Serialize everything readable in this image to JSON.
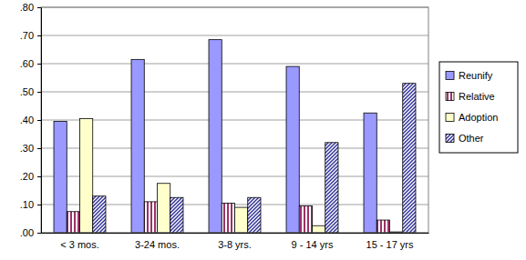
{
  "chart_data": {
    "type": "bar",
    "categories": [
      "< 3 mos.",
      "3-24 mos.",
      "3-8 yrs.",
      "9 - 14 yrs",
      "15 - 17 yrs"
    ],
    "series": [
      {
        "name": "Reunify",
        "color": "#9999ff",
        "values": [
          0.395,
          0.615,
          0.685,
          0.59,
          0.425
        ]
      },
      {
        "name": "Relative",
        "color": "#993366",
        "values": [
          0.075,
          0.11,
          0.105,
          0.095,
          0.045
        ]
      },
      {
        "name": "Adoption",
        "color": "#ffffcc",
        "values": [
          0.405,
          0.175,
          0.09,
          0.025,
          0.003
        ]
      },
      {
        "name": "Other",
        "color": "#333399",
        "values": [
          0.13,
          0.125,
          0.125,
          0.32,
          0.53
        ]
      }
    ],
    "ylim": [
      0,
      0.8
    ],
    "yticks": [
      {
        "value": 0,
        "label": ".00"
      },
      {
        "value": 0.1,
        "label": ".10"
      },
      {
        "value": 0.2,
        "label": ".20"
      },
      {
        "value": 0.3,
        "label": ".30"
      },
      {
        "value": 0.4,
        "label": ".40"
      },
      {
        "value": 0.5,
        "label": ".50"
      },
      {
        "value": 0.6,
        "label": ".60"
      },
      {
        "value": 0.7,
        "label": ".70"
      },
      {
        "value": 0.8,
        "label": ".80"
      }
    ],
    "grid": true,
    "legend": "right"
  }
}
